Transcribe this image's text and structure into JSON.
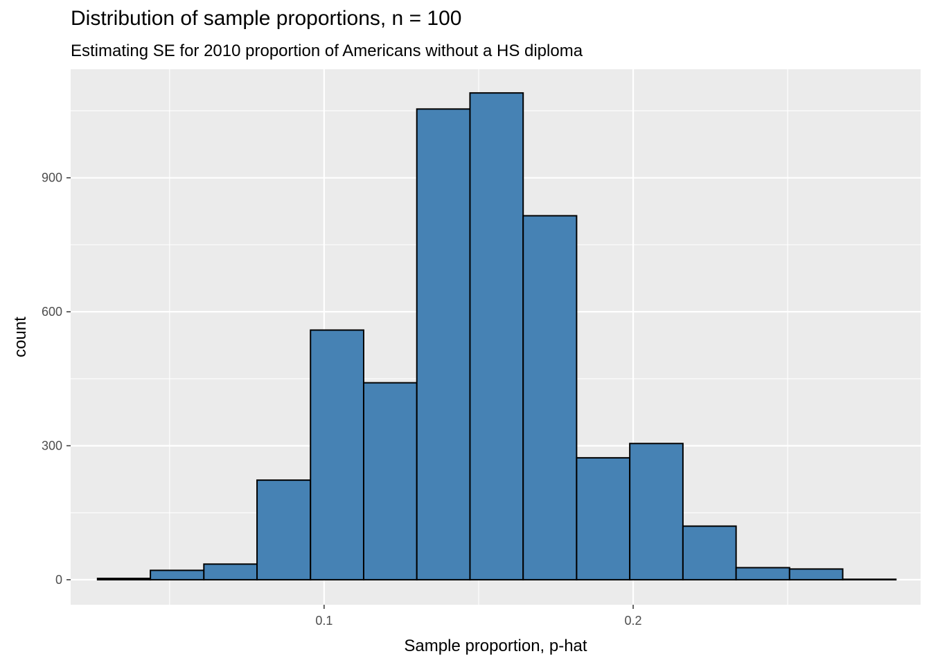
{
  "chart_data": {
    "type": "bar",
    "title": "Distribution of sample proportions, n = 100",
    "subtitle": "Estimating SE for 2010 proportion of Americans without a HS diploma",
    "xlabel": "Sample proportion, p-hat",
    "ylabel": "count",
    "xlim": [
      0.018,
      0.293
    ],
    "ylim": [
      -56,
      1143
    ],
    "x_ticks": [
      {
        "value": 0.1,
        "label": "0.1"
      },
      {
        "value": 0.2,
        "label": "0.2"
      }
    ],
    "y_ticks": [
      {
        "value": 0,
        "label": "0"
      },
      {
        "value": 300,
        "label": "300"
      },
      {
        "value": 600,
        "label": "600"
      },
      {
        "value": 900,
        "label": "900"
      }
    ],
    "x_minor_breaks": [
      0.05,
      0.15,
      0.25
    ],
    "y_minor_breaks": [
      150,
      450,
      750,
      1050
    ],
    "grid": true,
    "bar_fill": "#4682b4",
    "bar_outline": "#000000",
    "panel_background": "#ebebeb",
    "bins": [
      {
        "x_start": 0.0267,
        "x_end": 0.0438,
        "count": 3
      },
      {
        "x_start": 0.0438,
        "x_end": 0.0611,
        "count": 21
      },
      {
        "x_start": 0.0611,
        "x_end": 0.0783,
        "count": 35
      },
      {
        "x_start": 0.0783,
        "x_end": 0.0956,
        "count": 223
      },
      {
        "x_start": 0.0956,
        "x_end": 0.1128,
        "count": 559
      },
      {
        "x_start": 0.1128,
        "x_end": 0.13,
        "count": 441
      },
      {
        "x_start": 0.13,
        "x_end": 0.1472,
        "count": 1054
      },
      {
        "x_start": 0.1472,
        "x_end": 0.1644,
        "count": 1090
      },
      {
        "x_start": 0.1644,
        "x_end": 0.1817,
        "count": 815
      },
      {
        "x_start": 0.1817,
        "x_end": 0.1989,
        "count": 273
      },
      {
        "x_start": 0.1989,
        "x_end": 0.2161,
        "count": 305
      },
      {
        "x_start": 0.2161,
        "x_end": 0.2333,
        "count": 120
      },
      {
        "x_start": 0.2333,
        "x_end": 0.2506,
        "count": 27
      },
      {
        "x_start": 0.2506,
        "x_end": 0.2678,
        "count": 24
      },
      {
        "x_start": 0.2678,
        "x_end": 0.285,
        "count": 1
      }
    ]
  }
}
